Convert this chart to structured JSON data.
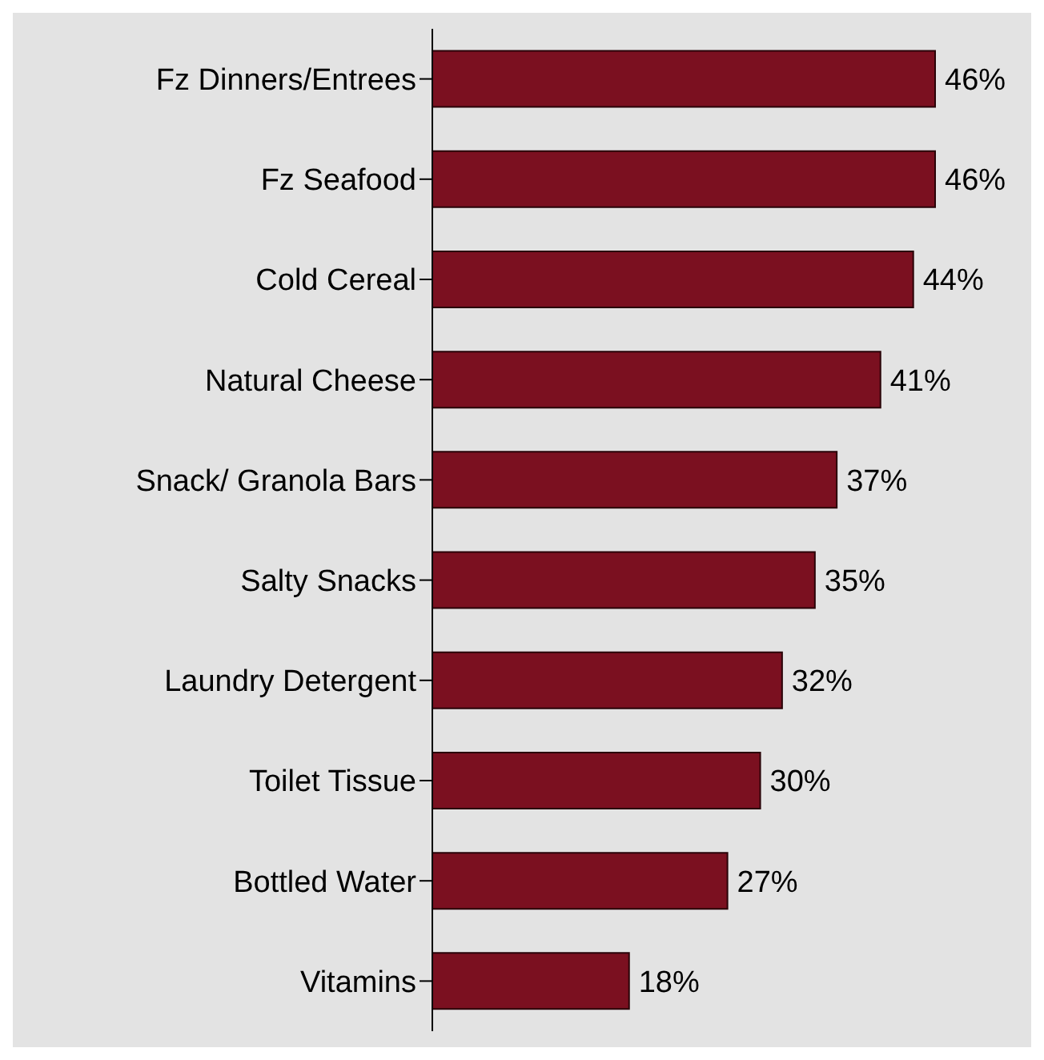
{
  "chart_data": {
    "type": "bar",
    "orientation": "horizontal",
    "categories": [
      "Fz Dinners/Entrees",
      "Fz Seafood",
      "Cold Cereal",
      "Natural Cheese",
      "Snack/ Granola Bars",
      "Salty Snacks",
      "Laundry Detergent",
      "Toilet Tissue",
      "Bottled Water",
      "Vitamins"
    ],
    "values": [
      46,
      46,
      44,
      41,
      37,
      35,
      32,
      30,
      27,
      18
    ],
    "value_labels": [
      "46%",
      "46%",
      "44%",
      "41%",
      "37%",
      "35%",
      "32%",
      "30%",
      "27%",
      "18%"
    ],
    "color": "#7b1020"
  }
}
